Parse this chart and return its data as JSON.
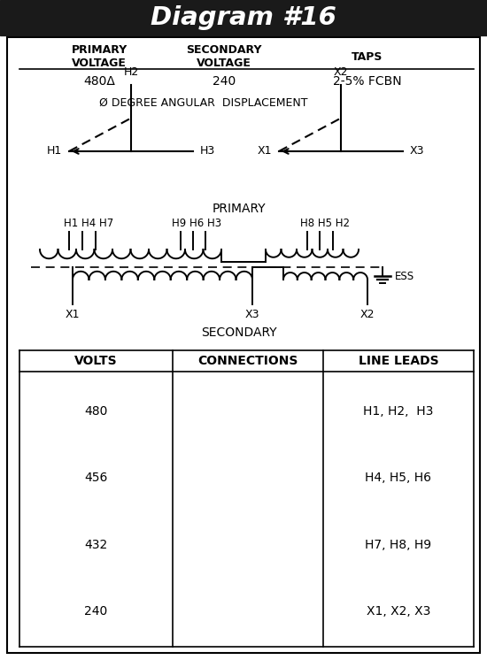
{
  "title": "Diagram #16",
  "title_bg": "#1a1a1a",
  "title_color": "#ffffff",
  "primary_voltage": "480Δ",
  "secondary_voltage": "240",
  "taps": "2-5% FCBN",
  "angular_disp": "Ø DEGREE ANGULAR  DISPLACEMENT",
  "volts_rows": [
    "480",
    "456",
    "432",
    "240"
  ],
  "line_leads_rows": [
    "H1, H2,  H3",
    "H4, H5, H6",
    "H7, H8, H9",
    "X1, X2, X3"
  ],
  "bg_color": "#ffffff",
  "line_color": "#000000"
}
